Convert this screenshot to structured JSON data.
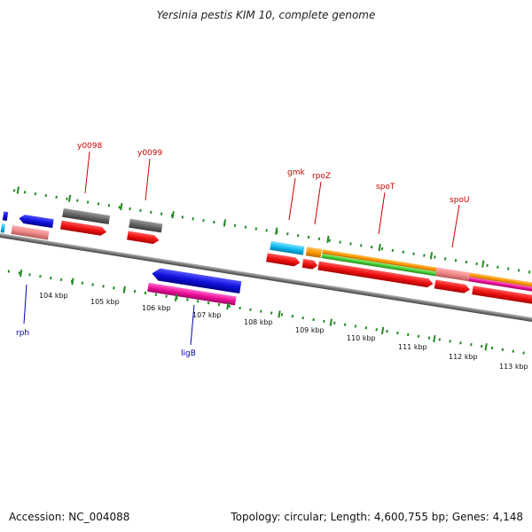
{
  "title": "Yersinia pestis KIM 10, complete genome",
  "footer": {
    "accession": "Accession: NC_004088",
    "summary": "Topology: circular; Length: 4,600,755 bp; Genes: 4,148"
  },
  "ticks": [
    {
      "label": "104 kbp"
    },
    {
      "label": "105 kbp"
    },
    {
      "label": "106 kbp"
    },
    {
      "label": "107 kbp"
    },
    {
      "label": "108 kbp"
    },
    {
      "label": "109 kbp"
    },
    {
      "label": "110 kbp"
    },
    {
      "label": "111 kbp"
    },
    {
      "label": "112 kbp"
    },
    {
      "label": "113 kbp"
    }
  ],
  "gene_labels": [
    {
      "name": "y0098",
      "color": "#cc0000"
    },
    {
      "name": "y0099",
      "color": "#cc0000"
    },
    {
      "name": "gmk",
      "color": "#cc0000"
    },
    {
      "name": "rpoZ",
      "color": "#cc0000"
    },
    {
      "name": "spoT",
      "color": "#cc0000"
    },
    {
      "name": "spoU",
      "color": "#cc0000"
    },
    {
      "name": "rph",
      "color": "#0000aa"
    },
    {
      "name": "ligB",
      "color": "#0000aa"
    }
  ],
  "colors": {
    "backbone": "#888888",
    "tick": "#228b22",
    "gene_red": "#ee1111",
    "gene_blue": "#1111dd",
    "gene_gray": "#666666",
    "gene_cyan": "#11bbee",
    "gene_orange": "#ff9900",
    "gene_green": "#44cc33",
    "gene_pink": "#ee1199",
    "gene_salmon": "#ee8888"
  }
}
